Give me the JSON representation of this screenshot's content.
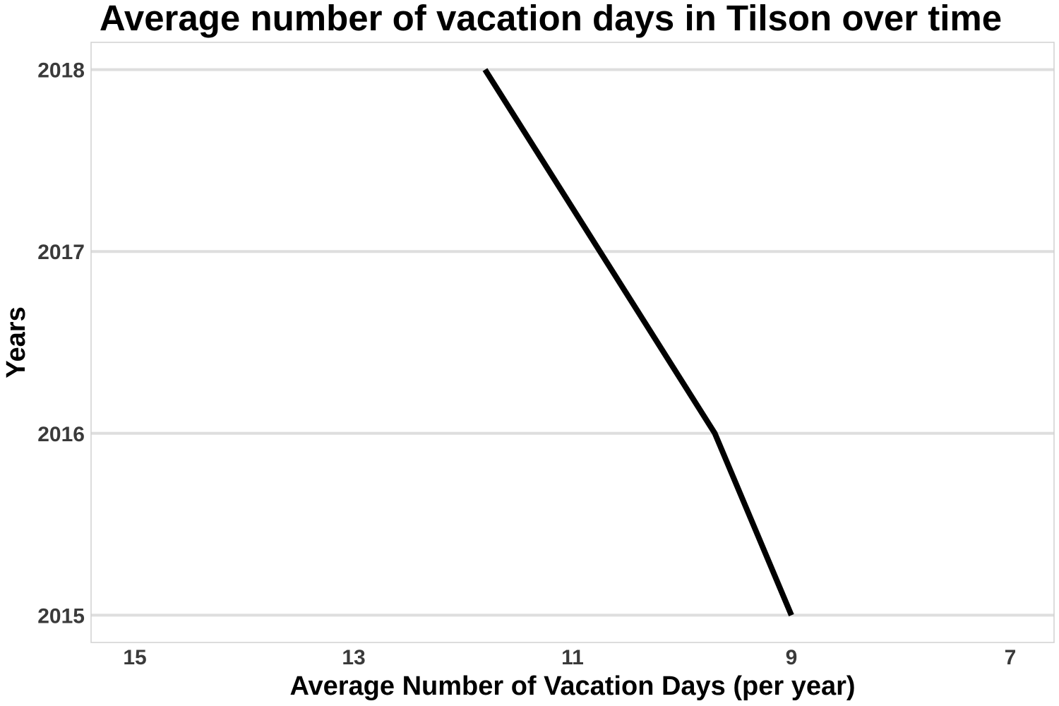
{
  "chart_data": {
    "type": "line",
    "title": "Average number of vacation days in Tilson over time",
    "xlabel": "Average Number of Vacation Days (per year)",
    "ylabel": "Years",
    "x_reversed": true,
    "xlim": [
      15.4,
      6.6
    ],
    "ylim": [
      2014.85,
      2018.15
    ],
    "x_ticks": [
      15,
      13,
      11,
      9,
      7
    ],
    "y_ticks": [
      2015,
      2016,
      2017,
      2018
    ],
    "x_tick_labels": [
      "15",
      "13",
      "11",
      "9",
      "7"
    ],
    "y_tick_labels": [
      "2015",
      "2016",
      "2017",
      "2018"
    ],
    "grid": {
      "major_y": true,
      "major_x": false
    },
    "series": [
      {
        "color": "#000000",
        "points": [
          {
            "x": 9.0,
            "y": 2015
          },
          {
            "x": 9.7,
            "y": 2016
          },
          {
            "x": 10.75,
            "y": 2017
          },
          {
            "x": 11.8,
            "y": 2018
          }
        ]
      }
    ],
    "colors": {
      "line": "#000000",
      "grid": "#dedede",
      "panel_border": "#d0d0d0",
      "tick_text": "#3a3a3a",
      "background": "#ffffff"
    }
  }
}
